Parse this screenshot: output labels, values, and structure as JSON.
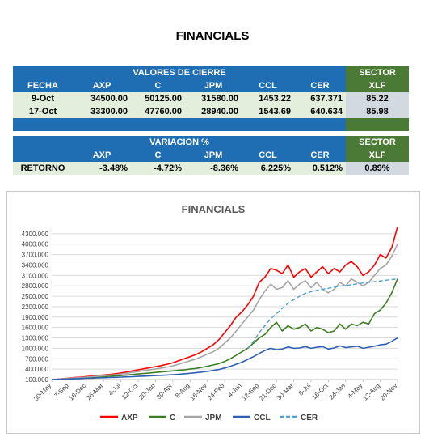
{
  "title": "FINANCIALS",
  "table1": {
    "group_header": "VALORES DE CIERRE",
    "sector_header": "SECTOR",
    "columns": [
      "FECHA",
      "AXP",
      "C",
      "JPM",
      "CCL",
      "CER"
    ],
    "sector_column": "XLF",
    "rows": [
      {
        "cells": [
          "9-Oct",
          "34500.00",
          "50125.00",
          "31580.00",
          "1453.22",
          "637.371"
        ],
        "sector": "85.22"
      },
      {
        "cells": [
          "17-Oct",
          "33300.00",
          "47760.00",
          "28940.00",
          "1543.69",
          "640.634"
        ],
        "sector": "85.98"
      }
    ]
  },
  "table2": {
    "group_header": "VARIACION %",
    "sector_header": "SECTOR",
    "columns": [
      "",
      "AXP",
      "C",
      "JPM",
      "CCL",
      "CER"
    ],
    "sector_column": "XLF",
    "row": {
      "cells": [
        "RETORNO",
        "-3.48%",
        "-4.72%",
        "-8.36%",
        "6.225%",
        "0.512%"
      ],
      "sector": "0.89%"
    }
  },
  "chart_data": {
    "type": "line",
    "title": "FINANCIALS",
    "x_ticks": [
      "30-May",
      "7-Sep",
      "16-Dec",
      "26-Mar",
      "4-Jul",
      "12-Oct",
      "20-Jan",
      "30-Apr",
      "8-Aug",
      "16-Nov",
      "24-Feb",
      "4-Jun",
      "12-Sep",
      "21-Dec",
      "30-Mar",
      "8-Jul",
      "16-Oct",
      "24-Jan",
      "4-May",
      "12-Aug",
      "20-Nov"
    ],
    "y_ticks": [
      "100.000",
      "400.000",
      "700.000",
      "1000.000",
      "1300.000",
      "1600.000",
      "1900.000",
      "2200.000",
      "2500.000",
      "2800.000",
      "3100.000",
      "3400.000",
      "3700.000",
      "4000.000",
      "4300.000"
    ],
    "ylim": [
      100,
      4600
    ],
    "grid": true,
    "legend_position": "bottom",
    "series": [
      {
        "name": "AXP",
        "color": "#ff0000",
        "dash": false,
        "values": [
          100,
          110,
          125,
          140,
          155,
          170,
          185,
          200,
          215,
          230,
          245,
          265,
          290,
          320,
          350,
          380,
          410,
          440,
          470,
          500,
          540,
          580,
          640,
          700,
          760,
          820,
          900,
          1000,
          1100,
          1250,
          1450,
          1650,
          1900,
          2050,
          2250,
          2500,
          2900,
          3050,
          3300,
          3250,
          3150,
          3400,
          3050,
          3200,
          3300,
          3050,
          3200,
          3350,
          3150,
          3300,
          3200,
          3400,
          3500,
          3350,
          3100,
          3200,
          3400,
          3700,
          3600,
          3900,
          4500
        ]
      },
      {
        "name": "C",
        "color": "#3c7d22",
        "dash": false,
        "values": [
          100,
          105,
          115,
          125,
          135,
          145,
          155,
          165,
          175,
          185,
          195,
          205,
          215,
          230,
          245,
          260,
          275,
          290,
          305,
          320,
          335,
          350,
          365,
          380,
          400,
          420,
          450,
          480,
          520,
          560,
          620,
          700,
          800,
          900,
          1000,
          1150,
          1300,
          1400,
          1600,
          1750,
          1500,
          1650,
          1550,
          1600,
          1700,
          1500,
          1600,
          1550,
          1450,
          1500,
          1700,
          1550,
          1700,
          1650,
          1750,
          1700,
          2000,
          2100,
          2300,
          2600,
          3000
        ]
      },
      {
        "name": "JPM",
        "color": "#a6a6a6",
        "dash": false,
        "values": [
          100,
          108,
          120,
          132,
          145,
          158,
          170,
          183,
          196,
          210,
          225,
          240,
          258,
          280,
          305,
          330,
          355,
          380,
          405,
          430,
          460,
          495,
          540,
          590,
          640,
          690,
          760,
          830,
          900,
          1000,
          1150,
          1300,
          1500,
          1700,
          1900,
          2100,
          2400,
          2650,
          2850,
          2700,
          2750,
          2950,
          2700,
          2850,
          2950,
          2750,
          2900,
          2700,
          2600,
          2700,
          2900,
          2800,
          3000,
          2900,
          2800,
          2900,
          3100,
          3300,
          3400,
          3650,
          4000
        ]
      },
      {
        "name": "CCL",
        "color": "#2f5fb3",
        "dash": false,
        "values": [
          100,
          104,
          110,
          116,
          122,
          128,
          134,
          140,
          146,
          152,
          158,
          164,
          170,
          176,
          182,
          190,
          198,
          206,
          214,
          222,
          230,
          240,
          252,
          266,
          280,
          296,
          315,
          335,
          360,
          390,
          430,
          480,
          540,
          600,
          680,
          760,
          850,
          940,
          1000,
          960,
          980,
          1040,
          1000,
          1010,
          1050,
          1000,
          1030,
          1050,
          980,
          1010,
          1070,
          1020,
          1040,
          1060,
          1000,
          1030,
          1060,
          1100,
          1120,
          1200,
          1300
        ]
      },
      {
        "name": "CER",
        "color": "#4f9fd6",
        "dash": true,
        "values": [
          null,
          null,
          null,
          null,
          null,
          null,
          null,
          null,
          null,
          null,
          null,
          null,
          null,
          null,
          null,
          null,
          null,
          null,
          null,
          null,
          null,
          null,
          null,
          null,
          null,
          null,
          null,
          null,
          null,
          null,
          null,
          null,
          null,
          null,
          1000,
          1200,
          1450,
          1650,
          1850,
          2000,
          2150,
          2300,
          2400,
          2500,
          2580,
          2630,
          2670,
          2700,
          2730,
          2760,
          2790,
          2810,
          2830,
          2860,
          2880,
          2900,
          2920,
          2940,
          2960,
          2980,
          3000
        ]
      }
    ]
  }
}
